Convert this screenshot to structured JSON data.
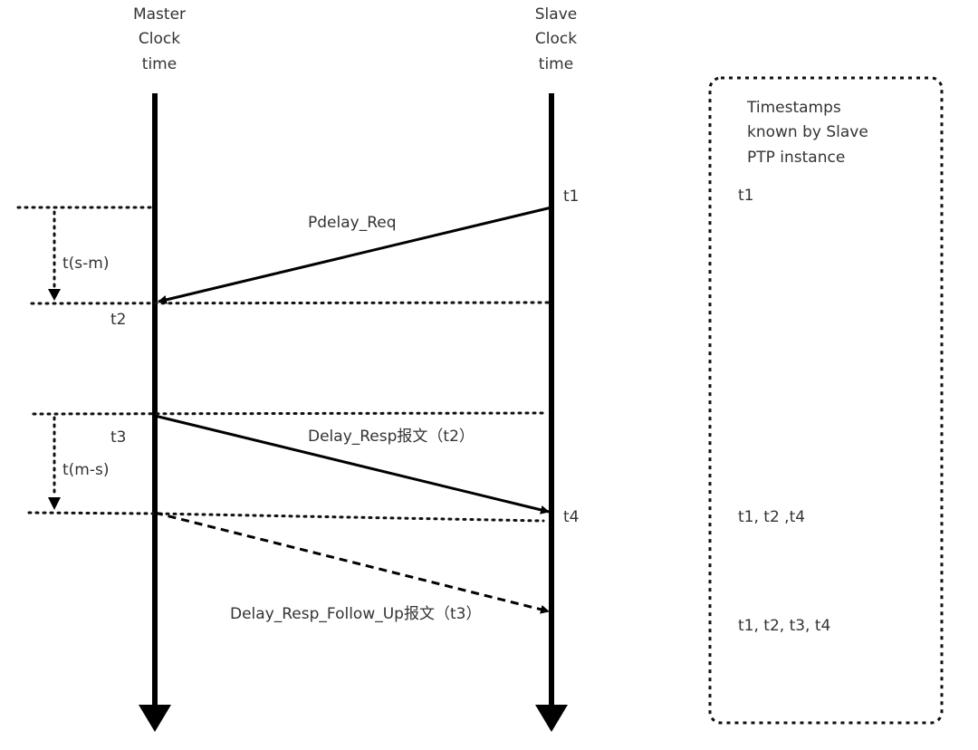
{
  "master": {
    "lines": [
      "Master",
      "Clock",
      "time"
    ]
  },
  "slave": {
    "lines": [
      "Slave",
      "Clock",
      "time"
    ]
  },
  "labels": {
    "t1": "t1",
    "t2": "t2",
    "t3": "t3",
    "t4": "t4",
    "t_s_m": "t(s-m)",
    "t_m_s": "t(m-s)"
  },
  "messages": {
    "pdelay_req": "Pdelay_Req",
    "delay_resp": "Delay_Resp报文（t2）",
    "follow_up": "Delay_Resp_Follow_Up报文（t3）"
  },
  "timestamps_box": {
    "title_lines": [
      "Timestamps",
      "known by Slave",
      "PTP instance"
    ],
    "rows": [
      "t1",
      "t1, t2 ,t4",
      "t1, t2, t3, t4"
    ]
  }
}
